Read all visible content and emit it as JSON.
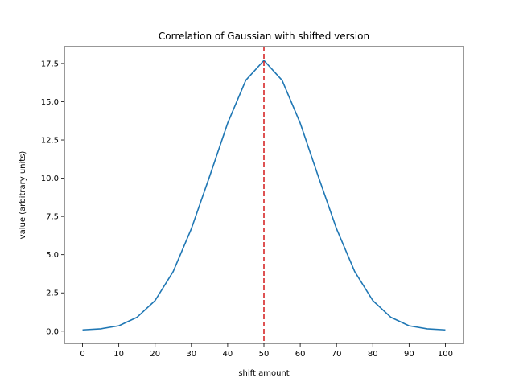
{
  "chart_data": {
    "type": "line",
    "title": "Correlation of Gaussian with shifted version",
    "xlabel": "shift amount",
    "ylabel": "value (arbitrary units)",
    "xlim": [
      -5,
      105
    ],
    "ylim": [
      -0.8,
      18.6
    ],
    "x_ticks": [
      0,
      10,
      20,
      30,
      40,
      50,
      60,
      70,
      80,
      90,
      100
    ],
    "x_tick_labels": [
      "0",
      "10",
      "20",
      "30",
      "40",
      "50",
      "60",
      "70",
      "80",
      "90",
      "100"
    ],
    "y_ticks": [
      0.0,
      2.5,
      5.0,
      7.5,
      10.0,
      12.5,
      15.0,
      17.5
    ],
    "y_tick_labels": [
      "0.0",
      "2.5",
      "5.0",
      "7.5",
      "10.0",
      "12.5",
      "15.0",
      "17.5"
    ],
    "grid": false,
    "series": [
      {
        "color": "#1f77b4",
        "x": [
          0,
          5,
          10,
          15,
          20,
          25,
          30,
          35,
          40,
          45,
          50,
          55,
          60,
          65,
          70,
          75,
          80,
          85,
          90,
          95,
          100
        ],
        "y": [
          0.08,
          0.15,
          0.35,
          0.9,
          2.0,
          3.9,
          6.7,
          10.1,
          13.6,
          16.4,
          17.7,
          16.4,
          13.6,
          10.1,
          6.7,
          3.9,
          2.0,
          0.9,
          0.35,
          0.15,
          0.08
        ]
      }
    ],
    "vline": {
      "x": 50,
      "color": "#d62728",
      "style": "dashed"
    }
  }
}
